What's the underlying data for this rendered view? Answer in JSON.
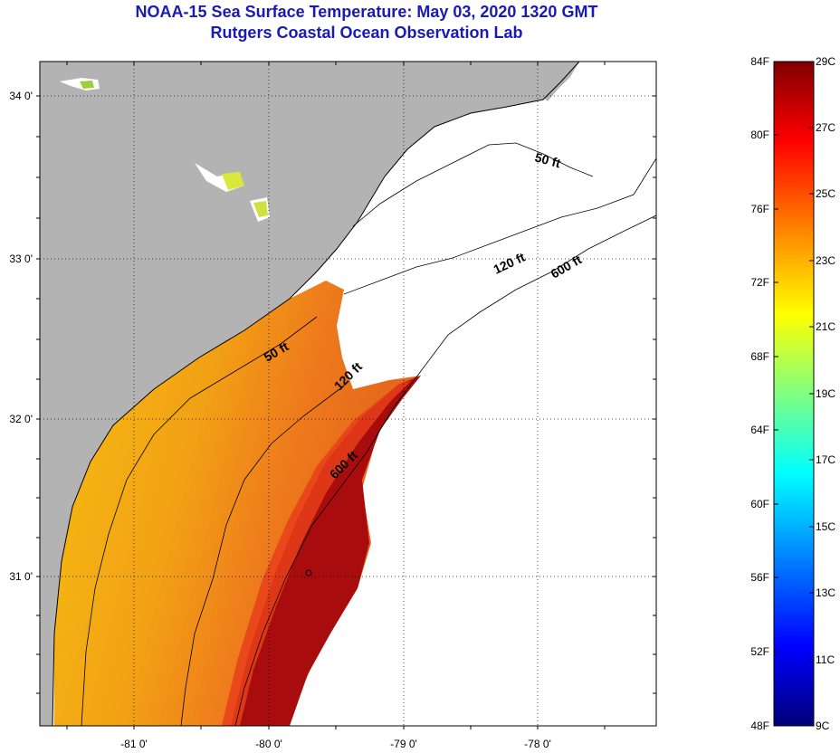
{
  "title": {
    "line1": "NOAA-15 Sea Surface Temperature:  May 03, 2020 1320 GMT",
    "line2": "Rutgers Coastal Ocean Observation Lab"
  },
  "map": {
    "lat_labels": [
      "34 0'",
      "33 0'",
      "32 0'",
      "31 0'"
    ],
    "lat_values": [
      34,
      33,
      32,
      31
    ],
    "lon_labels": [
      "-81 0'",
      "-80 0'",
      "-79 0'",
      "-78 0'"
    ],
    "lon_values": [
      -81,
      -80,
      -79,
      -78
    ],
    "lat_range": [
      30.1,
      34.2
    ],
    "lon_range": [
      -81.7,
      -77.4
    ],
    "contours": [
      {
        "label": "50 ft",
        "instance": "north"
      },
      {
        "label": "120 ft",
        "instance": "north"
      },
      {
        "label": "600 ft",
        "instance": "north"
      },
      {
        "label": "50 ft",
        "instance": "south"
      },
      {
        "label": "120 ft",
        "instance": "south"
      },
      {
        "label": "600 ft",
        "instance": "south"
      }
    ],
    "colors": {
      "land": "#b3b3b3",
      "sst_cool": "#f5be10",
      "sst_mid": "#f07818",
      "sst_warm": "#a00a0a",
      "no_data": "#ffffff"
    }
  },
  "colorbar": {
    "f_labels": [
      "84F",
      "80F",
      "76F",
      "72F",
      "68F",
      "64F",
      "60F",
      "56F",
      "52F",
      "48F"
    ],
    "c_labels": [
      "29C",
      "27C",
      "25C",
      "23C",
      "21C",
      "19C",
      "17C",
      "15C",
      "13C",
      "11C",
      "9C"
    ],
    "min_c": 9,
    "max_c": 29,
    "stops": [
      "#00007a",
      "#0000ff",
      "#0080ff",
      "#00ffff",
      "#80ff80",
      "#ffff00",
      "#ff8000",
      "#ff0000",
      "#800000"
    ]
  }
}
